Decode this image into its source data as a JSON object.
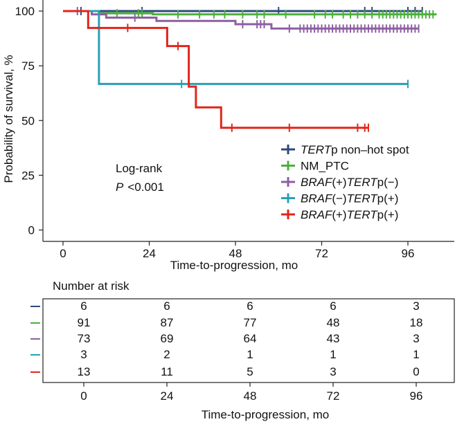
{
  "chart_data": {
    "type": "line",
    "subtype": "kaplan-meier",
    "title": "",
    "xlabel": "Time-to-progression, mo",
    "ylabel": "Probability of survival, %",
    "xlim": [
      -5,
      103
    ],
    "ylim": [
      0,
      100
    ],
    "xticks": [
      0,
      24,
      48,
      72,
      96
    ],
    "yticks": [
      0,
      25,
      50,
      75,
      100
    ],
    "annotation": {
      "line1": "Log-rank",
      "p_label": "P",
      "p_value": "<0.001"
    },
    "series": [
      {
        "name_parts": [
          {
            "text": "TERT",
            "italic": true
          },
          {
            "text": "p non–hot spot",
            "italic": false
          }
        ],
        "color": "#2b4a7a",
        "steps": [
          [
            0,
            100
          ],
          [
            100,
            100
          ]
        ],
        "censor": [
          5,
          22,
          60,
          84,
          86,
          96,
          98,
          100
        ]
      },
      {
        "name_parts": [
          {
            "text": "NM_PTC",
            "italic": false
          }
        ],
        "color": "#4caf3c",
        "steps": [
          [
            0,
            100
          ],
          [
            10,
            100
          ],
          [
            10,
            99
          ],
          [
            25,
            99
          ],
          [
            25,
            98.5
          ],
          [
            104,
            98.5
          ]
        ],
        "censor": [
          15,
          21,
          22,
          32,
          38,
          42,
          45,
          50,
          54,
          56,
          62,
          70,
          73,
          75,
          78,
          80,
          82,
          84,
          86,
          88,
          89,
          90,
          91,
          92,
          93,
          94,
          95,
          96,
          97,
          98,
          99,
          100,
          101,
          102,
          103
        ]
      },
      {
        "name_parts": [
          {
            "text": "BRAF",
            "italic": true
          },
          {
            "text": "(+)",
            "italic": false
          },
          {
            "text": "TERT",
            "italic": true
          },
          {
            "text": "p(−)",
            "italic": false
          }
        ],
        "color": "#8e5ea2",
        "steps": [
          [
            0,
            100
          ],
          [
            8,
            100
          ],
          [
            8,
            98.5
          ],
          [
            12,
            98.5
          ],
          [
            12,
            97
          ],
          [
            26,
            97
          ],
          [
            26,
            95.5
          ],
          [
            48,
            95.5
          ],
          [
            48,
            94
          ],
          [
            58,
            94
          ],
          [
            58,
            92
          ],
          [
            99,
            92
          ]
        ],
        "censor": [
          4,
          20,
          50,
          54,
          55,
          56,
          63,
          66,
          67,
          68,
          69,
          70,
          71,
          72,
          73,
          74,
          75,
          76,
          77,
          78,
          79,
          80,
          81,
          82,
          83,
          84,
          85,
          86,
          87,
          88,
          89,
          90,
          91,
          92,
          93,
          94,
          95,
          96,
          97,
          98,
          99
        ]
      },
      {
        "name_parts": [
          {
            "text": "BRAF",
            "italic": true
          },
          {
            "text": "(−)",
            "italic": false
          },
          {
            "text": "TERT",
            "italic": true
          },
          {
            "text": "p(+)",
            "italic": false
          }
        ],
        "color": "#2a9fb5",
        "steps": [
          [
            0,
            100
          ],
          [
            10,
            100
          ],
          [
            10,
            66.7
          ],
          [
            96,
            66.7
          ]
        ],
        "censor": [
          33,
          96
        ]
      },
      {
        "name_parts": [
          {
            "text": "BRAF",
            "italic": true
          },
          {
            "text": "(+)",
            "italic": false
          },
          {
            "text": "TERT",
            "italic": true
          },
          {
            "text": "p(+)",
            "italic": false
          }
        ],
        "color": "#e0251b",
        "steps": [
          [
            0,
            100
          ],
          [
            7,
            100
          ],
          [
            7,
            92.3
          ],
          [
            29,
            92.3
          ],
          [
            29,
            84
          ],
          [
            35,
            84
          ],
          [
            35,
            65.5
          ],
          [
            37,
            65.5
          ],
          [
            37,
            56
          ],
          [
            44,
            56
          ],
          [
            44,
            46.7
          ],
          [
            85,
            46.7
          ]
        ],
        "censor": [
          18,
          32,
          47,
          63,
          82,
          84,
          85
        ]
      }
    ],
    "risk_table": {
      "title": "Number at risk",
      "xlabel": "Time-to-progression, mo",
      "times": [
        0,
        24,
        48,
        72,
        96
      ],
      "rows": [
        [
          6,
          6,
          6,
          6,
          3
        ],
        [
          91,
          87,
          77,
          48,
          18
        ],
        [
          73,
          69,
          64,
          43,
          3
        ],
        [
          3,
          2,
          1,
          1,
          1
        ],
        [
          13,
          11,
          5,
          3,
          0
        ]
      ]
    }
  }
}
